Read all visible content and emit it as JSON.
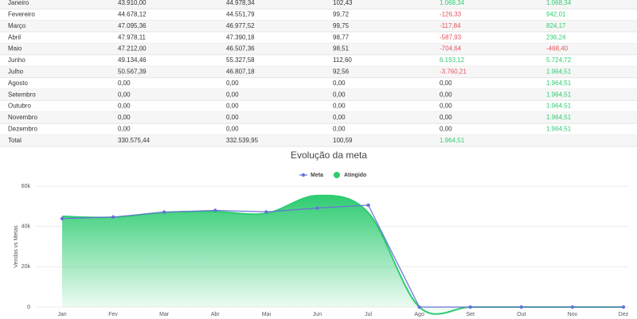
{
  "table": {
    "rows": [
      [
        "Janeiro",
        "43.910,00",
        "44.978,34",
        "102,43",
        "1.068,34",
        "1.068,34"
      ],
      [
        "Fevereiro",
        "44.678,12",
        "44.551,79",
        "99,72",
        "-126,33",
        "942,01"
      ],
      [
        "Março",
        "47.095,36",
        "46.977,52",
        "99,75",
        "-117,84",
        "824,17"
      ],
      [
        "Abril",
        "47.978,11",
        "47.390,18",
        "98,77",
        "-587,93",
        "236,24"
      ],
      [
        "Maio",
        "47.212,00",
        "46.507,36",
        "98,51",
        "-704,64",
        "-468,40"
      ],
      [
        "Junho",
        "49.134,46",
        "55.327,58",
        "112,60",
        "6.193,12",
        "5.724,72"
      ],
      [
        "Julho",
        "50.567,39",
        "46.807,18",
        "92,56",
        "-3.760,21",
        "1.964,51"
      ],
      [
        "Agosto",
        "0,00",
        "0,00",
        "0,00",
        "0,00",
        "1.964,51"
      ],
      [
        "Setembro",
        "0,00",
        "0,00",
        "0,00",
        "0,00",
        "1.964,51"
      ],
      [
        "Outubro",
        "0,00",
        "0,00",
        "0,00",
        "0,00",
        "1.964,51"
      ],
      [
        "Novembro",
        "0,00",
        "0,00",
        "0,00",
        "0,00",
        "1.964,51"
      ],
      [
        "Dezembro",
        "0,00",
        "0,00",
        "0,00",
        "0,00",
        "1.964,51"
      ],
      [
        "Total",
        "330.575,44",
        "332.539,95",
        "100,59",
        "1.964,51"
      ]
    ]
  },
  "chart_data": {
    "type": "area",
    "title": "Evolução da meta",
    "y_label": "Vendas vs Metas",
    "categories": [
      "Jan",
      "Fev",
      "Mar",
      "Abr",
      "Mai",
      "Jun",
      "Jul",
      "Ago",
      "Set",
      "Out",
      "Nov",
      "Dez"
    ],
    "series": [
      {
        "name": "Meta",
        "color": "#6872d8",
        "values": [
          43910,
          44678.12,
          47095.36,
          47978.11,
          47212,
          49134.46,
          50567.39,
          0,
          0,
          0,
          0,
          0
        ]
      },
      {
        "name": "Atingido",
        "color": "#2ecc71",
        "values": [
          44978.34,
          44551.79,
          46977.52,
          47390.18,
          46507.36,
          55327.58,
          46807.18,
          0,
          0,
          0,
          0,
          0
        ]
      }
    ],
    "ylim": [
      0,
      60000
    ],
    "yticks": [
      0,
      {
        "value": 20000,
        "label": "20k"
      },
      {
        "value": 40000,
        "label": "40k"
      },
      {
        "value": 60000,
        "label": "60k"
      }
    ],
    "grid": true
  }
}
